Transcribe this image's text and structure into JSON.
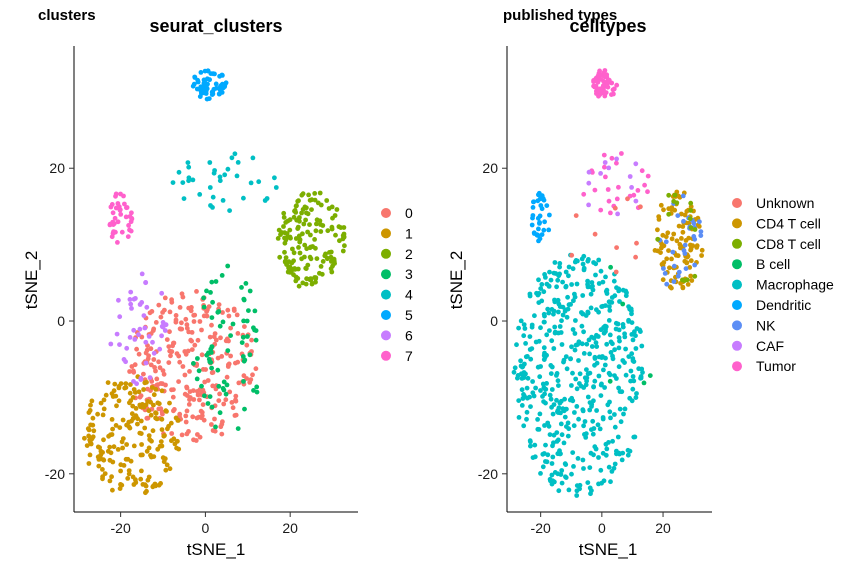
{
  "chart_data": [
    {
      "type": "scatter",
      "tag": "clusters",
      "title": "seurat_clusters",
      "xlabel": "tSNE_1",
      "ylabel": "tSNE_2",
      "xlim": [
        -31,
        36
      ],
      "ylim": [
        -25,
        36
      ],
      "xticks": [
        -20,
        0,
        20
      ],
      "yticks": [
        -20,
        0,
        20
      ],
      "grid": false,
      "legend_position": "right",
      "series": [
        {
          "name": "0",
          "color": "#F8766D"
        },
        {
          "name": "1",
          "color": "#CD9600"
        },
        {
          "name": "2",
          "color": "#7CAE00"
        },
        {
          "name": "3",
          "color": "#00BE67"
        },
        {
          "name": "4",
          "color": "#00BFC4"
        },
        {
          "name": "5",
          "color": "#00A9FF"
        },
        {
          "name": "6",
          "color": "#C77CFF"
        },
        {
          "name": "7",
          "color": "#FF61CC"
        }
      ],
      "points": [
        {
          "label": "0",
          "cluster": "main-body",
          "x_range": [
            -18,
            12
          ],
          "y_range": [
            -16,
            4
          ],
          "approx_n": 280
        },
        {
          "label": "1",
          "cluster": "lower-left",
          "x_range": [
            -29,
            -6
          ],
          "y_range": [
            -23,
            -7
          ],
          "approx_n": 200
        },
        {
          "label": "2",
          "cluster": "right-blob",
          "x_range": [
            17,
            33
          ],
          "y_range": [
            4,
            17
          ],
          "approx_n": 160
        },
        {
          "label": "3",
          "cluster": "right-edge-of-main",
          "x_range": [
            -3,
            13
          ],
          "y_range": [
            -16,
            8
          ],
          "approx_n": 70
        },
        {
          "label": "4",
          "cluster": "upper-islands",
          "x_range": [
            -8,
            17
          ],
          "y_range": [
            14,
            22
          ],
          "approx_n": 35
        },
        {
          "label": "5",
          "cluster": "top",
          "x_range": [
            -3,
            5
          ],
          "y_range": [
            29,
            33
          ],
          "approx_n": 60
        },
        {
          "label": "6",
          "cluster": "left-strand",
          "x_range": [
            -23,
            -9
          ],
          "y_range": [
            -9,
            7
          ],
          "approx_n": 45
        },
        {
          "label": "7",
          "cluster": "upper-left",
          "x_range": [
            -23,
            -17
          ],
          "y_range": [
            10,
            17
          ],
          "approx_n": 40
        }
      ]
    },
    {
      "type": "scatter",
      "tag": "published types",
      "title": "celltypes",
      "xlabel": "tSNE_1",
      "ylabel": "tSNE_2",
      "xlim": [
        -31,
        36
      ],
      "ylim": [
        -25,
        36
      ],
      "xticks": [
        -20,
        0,
        20
      ],
      "yticks": [
        -20,
        0,
        20
      ],
      "grid": false,
      "legend_position": "right",
      "series": [
        {
          "name": "Unknown",
          "color": "#F8766D"
        },
        {
          "name": "CD4 T cell",
          "color": "#CD9600"
        },
        {
          "name": "CD8 T cell",
          "color": "#7CAE00"
        },
        {
          "name": "B cell",
          "color": "#00BE67"
        },
        {
          "name": "Macrophage",
          "color": "#00BFC4"
        },
        {
          "name": "Dendritic",
          "color": "#00A9FF"
        },
        {
          "name": "NK",
          "color": "#5C8EF5"
        },
        {
          "name": "CAF",
          "color": "#C77CFF"
        },
        {
          "name": "Tumor",
          "color": "#FF61CC"
        }
      ],
      "points": [
        {
          "label": "Macrophage",
          "cluster": "main-body",
          "x_range": [
            -29,
            14
          ],
          "y_range": [
            -23,
            9
          ],
          "approx_n": 520
        },
        {
          "label": "CD4 T cell",
          "cluster": "right-blob",
          "x_range": [
            17,
            33
          ],
          "y_range": [
            4,
            17
          ],
          "approx_n": 110
        },
        {
          "label": "NK",
          "cluster": "right-blob",
          "x_range": [
            17,
            33
          ],
          "y_range": [
            4,
            17
          ],
          "approx_n": 30
        },
        {
          "label": "CD8 T cell",
          "cluster": "right-blob",
          "x_range": [
            17,
            33
          ],
          "y_range": [
            4,
            17
          ],
          "approx_n": 15
        },
        {
          "label": "Dendritic",
          "cluster": "upper-left",
          "x_range": [
            -23,
            -17
          ],
          "y_range": [
            10,
            17
          ],
          "approx_n": 35
        },
        {
          "label": "Tumor",
          "cluster": "top",
          "x_range": [
            -3,
            5
          ],
          "y_range": [
            29,
            33
          ],
          "approx_n": 55
        },
        {
          "label": "Tumor",
          "cluster": "upper-islands",
          "x_range": [
            -8,
            17
          ],
          "y_range": [
            14,
            22
          ],
          "approx_n": 25
        },
        {
          "label": "CAF",
          "cluster": "upper-islands",
          "x_range": [
            -8,
            17
          ],
          "y_range": [
            14,
            22
          ],
          "approx_n": 12
        },
        {
          "label": "Unknown",
          "cluster": "scattered",
          "x_range": [
            -12,
            18
          ],
          "y_range": [
            5,
            17
          ],
          "approx_n": 10
        },
        {
          "label": "B cell",
          "cluster": "scattered",
          "x_range": [
            -12,
            18
          ],
          "y_range": [
            -16,
            8
          ],
          "approx_n": 5
        }
      ]
    }
  ]
}
